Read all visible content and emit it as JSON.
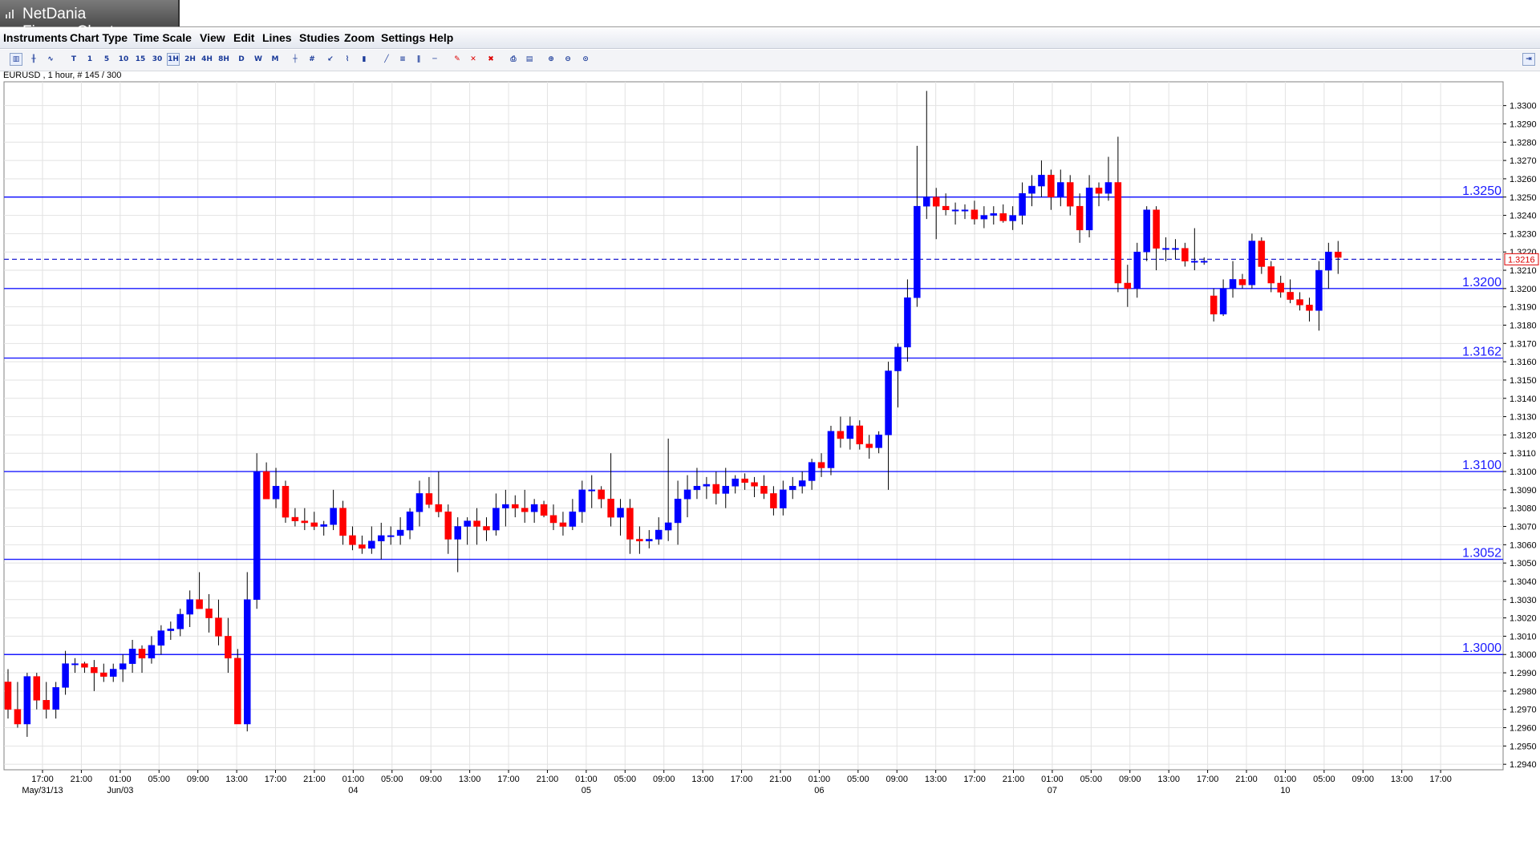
{
  "window": {
    "title": "NetDania FinanceChart"
  },
  "menu": [
    "Instruments",
    "Chart Type",
    "Time Scale",
    "View",
    "Edit",
    "Lines",
    "Studies",
    "Zoom",
    "Settings",
    "Help"
  ],
  "toolbar": {
    "timeframes": [
      "T",
      "1",
      "5",
      "10",
      "15",
      "30",
      "1H",
      "2H",
      "4H",
      "8H",
      "D",
      "W",
      "M"
    ],
    "selected_timeframe": "1H"
  },
  "chart_header": "EURUSD , 1 hour, # 145 / 300",
  "colors": {
    "up": "#0000ff",
    "down": "#ff0000",
    "hline": "#1a1aff",
    "grid": "#e2e2e2",
    "current": "#2020d0"
  },
  "chart_data": {
    "type": "candlestick",
    "symbol": "EURUSD",
    "timeframe": "1 hour",
    "ylim": [
      1.2937,
      1.3313
    ],
    "y_ticks": [
      "1.3300",
      "1.3290",
      "1.3280",
      "1.3270",
      "1.3260",
      "1.3250",
      "1.3240",
      "1.3230",
      "1.3220",
      "1.3210",
      "1.3200",
      "1.3190",
      "1.3180",
      "1.3170",
      "1.3160",
      "1.3150",
      "1.3140",
      "1.3130",
      "1.3120",
      "1.3110",
      "1.3100",
      "1.3090",
      "1.3080",
      "1.3070",
      "1.3060",
      "1.3050",
      "1.3040",
      "1.3030",
      "1.3020",
      "1.3010",
      "1.3000",
      "1.2990",
      "1.2980",
      "1.2970",
      "1.2960",
      "1.2950",
      "1.2940"
    ],
    "x_time_labels": [
      "17:00",
      "21:00",
      "01:00",
      "05:00",
      "09:00",
      "13:00",
      "17:00",
      "21:00",
      "01:00",
      "05:00",
      "09:00",
      "13:00",
      "17:00",
      "21:00",
      "01:00",
      "05:00",
      "09:00",
      "13:00",
      "17:00",
      "21:00",
      "01:00",
      "05:00",
      "09:00",
      "13:00",
      "17:00",
      "21:00",
      "01:00",
      "05:00",
      "09:00",
      "13:00",
      "17:00",
      "21:00",
      "01:00",
      "05:00",
      "09:00",
      "13:00",
      "17:00"
    ],
    "x_date_labels": [
      {
        "after_label": 0,
        "text": "May/31/13"
      },
      {
        "after_label": 2,
        "text": "Jun/03"
      },
      {
        "after_label": 8,
        "text": "04"
      },
      {
        "after_label": 14,
        "text": "05"
      },
      {
        "after_label": 20,
        "text": "06"
      },
      {
        "after_label": 26,
        "text": "07"
      },
      {
        "after_label": 32,
        "text": "10"
      }
    ],
    "horizontal_lines": [
      "1.3250",
      "1.3200",
      "1.3162",
      "1.3100",
      "1.3052",
      "1.3000"
    ],
    "current_price": "1.3216",
    "candles": [
      [
        1.2985,
        1.2992,
        1.2965,
        1.297
      ],
      [
        1.297,
        1.2985,
        1.296,
        1.2962
      ],
      [
        1.2962,
        1.299,
        1.2955,
        1.2988
      ],
      [
        1.2988,
        1.299,
        1.297,
        1.2975
      ],
      [
        1.2975,
        1.2985,
        1.2965,
        1.297
      ],
      [
        1.297,
        1.2985,
        1.2965,
        1.2982
      ],
      [
        1.2982,
        1.3002,
        1.2978,
        1.2995
      ],
      [
        1.2995,
        1.2998,
        1.299,
        1.2995
      ],
      [
        1.2995,
        1.2996,
        1.299,
        1.2993
      ],
      [
        1.2993,
        1.2997,
        1.298,
        1.299
      ],
      [
        1.299,
        1.2995,
        1.2985,
        1.2988
      ],
      [
        1.2988,
        1.2995,
        1.2985,
        1.2992
      ],
      [
        1.2992,
        1.3,
        1.2985,
        1.2995
      ],
      [
        1.2995,
        1.3008,
        1.299,
        1.3003
      ],
      [
        1.3003,
        1.3005,
        1.299,
        1.2998
      ],
      [
        1.2998,
        1.301,
        1.2995,
        1.3005
      ],
      [
        1.3005,
        1.3016,
        1.3,
        1.3013
      ],
      [
        1.3013,
        1.3018,
        1.3008,
        1.3014
      ],
      [
        1.3014,
        1.3025,
        1.301,
        1.3022
      ],
      [
        1.3022,
        1.3035,
        1.3015,
        1.303
      ],
      [
        1.303,
        1.3045,
        1.3025,
        1.3025
      ],
      [
        1.3025,
        1.3033,
        1.3012,
        1.302
      ],
      [
        1.302,
        1.303,
        1.3005,
        1.301
      ],
      [
        1.301,
        1.302,
        1.299,
        1.2998
      ],
      [
        1.2998,
        1.3003,
        1.2962,
        1.2962
      ],
      [
        1.2962,
        1.3045,
        1.2958,
        1.303
      ],
      [
        1.303,
        1.311,
        1.3025,
        1.31
      ],
      [
        1.31,
        1.3105,
        1.3085,
        1.3085
      ],
      [
        1.3085,
        1.3102,
        1.308,
        1.3092
      ],
      [
        1.3092,
        1.3095,
        1.3072,
        1.3075
      ],
      [
        1.3075,
        1.308,
        1.307,
        1.3073
      ],
      [
        1.3073,
        1.308,
        1.3068,
        1.3072
      ],
      [
        1.3072,
        1.3078,
        1.3068,
        1.307
      ],
      [
        1.307,
        1.3073,
        1.3065,
        1.3071
      ],
      [
        1.3071,
        1.309,
        1.3068,
        1.308
      ],
      [
        1.308,
        1.3084,
        1.306,
        1.3065
      ],
      [
        1.3065,
        1.307,
        1.3057,
        1.306
      ],
      [
        1.306,
        1.3065,
        1.3055,
        1.3058
      ],
      [
        1.3058,
        1.307,
        1.3055,
        1.3062
      ],
      [
        1.3062,
        1.3072,
        1.3052,
        1.3065
      ],
      [
        1.3065,
        1.307,
        1.306,
        1.3065
      ],
      [
        1.3065,
        1.3075,
        1.306,
        1.3068
      ],
      [
        1.3068,
        1.308,
        1.3063,
        1.3078
      ],
      [
        1.3078,
        1.3095,
        1.307,
        1.3088
      ],
      [
        1.3088,
        1.3097,
        1.308,
        1.3082
      ],
      [
        1.3082,
        1.31,
        1.3075,
        1.3078
      ],
      [
        1.3078,
        1.3082,
        1.3055,
        1.3063
      ],
      [
        1.3063,
        1.3075,
        1.3045,
        1.307
      ],
      [
        1.307,
        1.3075,
        1.306,
        1.3073
      ],
      [
        1.3073,
        1.308,
        1.306,
        1.307
      ],
      [
        1.307,
        1.3075,
        1.3062,
        1.3068
      ],
      [
        1.3068,
        1.3088,
        1.3065,
        1.308
      ],
      [
        1.308,
        1.309,
        1.307,
        1.3082
      ],
      [
        1.3082,
        1.3087,
        1.3075,
        1.308
      ],
      [
        1.308,
        1.309,
        1.3072,
        1.3078
      ],
      [
        1.3078,
        1.3085,
        1.3072,
        1.3082
      ],
      [
        1.3082,
        1.3084,
        1.3075,
        1.3076
      ],
      [
        1.3076,
        1.3082,
        1.3068,
        1.3072
      ],
      [
        1.3072,
        1.3078,
        1.3065,
        1.307
      ],
      [
        1.307,
        1.3085,
        1.3068,
        1.3078
      ],
      [
        1.3078,
        1.3095,
        1.3072,
        1.309
      ],
      [
        1.309,
        1.3098,
        1.308,
        1.309
      ],
      [
        1.309,
        1.3092,
        1.308,
        1.3085
      ],
      [
        1.3085,
        1.311,
        1.307,
        1.3075
      ],
      [
        1.3075,
        1.3085,
        1.3065,
        1.308
      ],
      [
        1.308,
        1.3085,
        1.3055,
        1.3063
      ],
      [
        1.3063,
        1.307,
        1.3055,
        1.3062
      ],
      [
        1.3062,
        1.3068,
        1.3058,
        1.3063
      ],
      [
        1.3063,
        1.3075,
        1.306,
        1.3068
      ],
      [
        1.3068,
        1.3118,
        1.3062,
        1.3072
      ],
      [
        1.3072,
        1.3095,
        1.306,
        1.3085
      ],
      [
        1.3085,
        1.3098,
        1.3075,
        1.309
      ],
      [
        1.309,
        1.3102,
        1.3085,
        1.3092
      ],
      [
        1.3092,
        1.3097,
        1.3085,
        1.3093
      ],
      [
        1.3093,
        1.31,
        1.3082,
        1.3088
      ],
      [
        1.3088,
        1.3102,
        1.308,
        1.3092
      ],
      [
        1.3092,
        1.3098,
        1.3088,
        1.3096
      ],
      [
        1.3096,
        1.3099,
        1.309,
        1.3094
      ],
      [
        1.3094,
        1.3097,
        1.3086,
        1.3092
      ],
      [
        1.3092,
        1.3098,
        1.3085,
        1.3088
      ],
      [
        1.3088,
        1.3092,
        1.3076,
        1.308
      ],
      [
        1.308,
        1.3095,
        1.3076,
        1.309
      ],
      [
        1.309,
        1.3097,
        1.3085,
        1.3092
      ],
      [
        1.3092,
        1.31,
        1.3088,
        1.3095
      ],
      [
        1.3095,
        1.3107,
        1.309,
        1.3105
      ],
      [
        1.3105,
        1.311,
        1.3097,
        1.3102
      ],
      [
        1.3102,
        1.3125,
        1.3098,
        1.3122
      ],
      [
        1.3122,
        1.313,
        1.3113,
        1.3118
      ],
      [
        1.3118,
        1.313,
        1.3112,
        1.3125
      ],
      [
        1.3125,
        1.3128,
        1.3112,
        1.3115
      ],
      [
        1.3115,
        1.312,
        1.3107,
        1.3113
      ],
      [
        1.3113,
        1.3122,
        1.311,
        1.312
      ],
      [
        1.312,
        1.316,
        1.309,
        1.3155
      ],
      [
        1.3155,
        1.317,
        1.3135,
        1.3168
      ],
      [
        1.3168,
        1.3205,
        1.316,
        1.3195
      ],
      [
        1.3195,
        1.3278,
        1.319,
        1.3245
      ],
      [
        1.3245,
        1.3308,
        1.3238,
        1.325
      ],
      [
        1.325,
        1.3255,
        1.3227,
        1.3245
      ],
      [
        1.3245,
        1.3252,
        1.324,
        1.3243
      ],
      [
        1.3243,
        1.3247,
        1.3235,
        1.3243
      ],
      [
        1.3243,
        1.3246,
        1.3238,
        1.3243
      ],
      [
        1.3243,
        1.3248,
        1.3235,
        1.3238
      ],
      [
        1.3238,
        1.3245,
        1.3233,
        1.324
      ],
      [
        1.324,
        1.3245,
        1.3235,
        1.3241
      ],
      [
        1.3241,
        1.3246,
        1.3236,
        1.3237
      ],
      [
        1.3237,
        1.3245,
        1.3232,
        1.324
      ],
      [
        1.324,
        1.3258,
        1.3235,
        1.3252
      ],
      [
        1.3252,
        1.3262,
        1.3245,
        1.3256
      ],
      [
        1.3256,
        1.327,
        1.325,
        1.3262
      ],
      [
        1.3262,
        1.3265,
        1.3243,
        1.325
      ],
      [
        1.325,
        1.3265,
        1.3245,
        1.3258
      ],
      [
        1.3258,
        1.3262,
        1.324,
        1.3245
      ],
      [
        1.3245,
        1.3252,
        1.3225,
        1.3232
      ],
      [
        1.3232,
        1.3262,
        1.3228,
        1.3255
      ],
      [
        1.3255,
        1.3258,
        1.3245,
        1.3252
      ],
      [
        1.3252,
        1.3272,
        1.3248,
        1.3258
      ],
      [
        1.3258,
        1.3283,
        1.3198,
        1.3203
      ],
      [
        1.3203,
        1.3213,
        1.319,
        1.32
      ],
      [
        1.32,
        1.3225,
        1.3195,
        1.322
      ],
      [
        1.322,
        1.3245,
        1.3215,
        1.3243
      ],
      [
        1.3243,
        1.3245,
        1.321,
        1.3222
      ],
      [
        1.3222,
        1.3228,
        1.3215,
        1.3222
      ],
      [
        1.3222,
        1.3227,
        1.3216,
        1.3222
      ],
      [
        1.3222,
        1.3225,
        1.3212,
        1.3215
      ],
      [
        1.3215,
        1.3233,
        1.321,
        1.3215
      ],
      [
        1.3215,
        1.3217,
        1.3213,
        1.3215
      ],
      [
        1.3196,
        1.32,
        1.3182,
        1.3186
      ],
      [
        1.3186,
        1.3205,
        1.3185,
        1.32
      ],
      [
        1.32,
        1.3215,
        1.3195,
        1.3205
      ],
      [
        1.3205,
        1.3208,
        1.32,
        1.3202
      ],
      [
        1.3202,
        1.323,
        1.32,
        1.3226
      ],
      [
        1.3226,
        1.3228,
        1.3208,
        1.3212
      ],
      [
        1.3212,
        1.3215,
        1.3198,
        1.3203
      ],
      [
        1.3203,
        1.3207,
        1.3195,
        1.3198
      ],
      [
        1.3198,
        1.3205,
        1.3192,
        1.3194
      ],
      [
        1.3194,
        1.3198,
        1.3188,
        1.3191
      ],
      [
        1.3191,
        1.3195,
        1.3182,
        1.3188
      ],
      [
        1.3188,
        1.3215,
        1.3177,
        1.321
      ],
      [
        1.321,
        1.3225,
        1.32,
        1.322
      ],
      [
        1.322,
        1.3226,
        1.3208,
        1.3217
      ]
    ]
  }
}
